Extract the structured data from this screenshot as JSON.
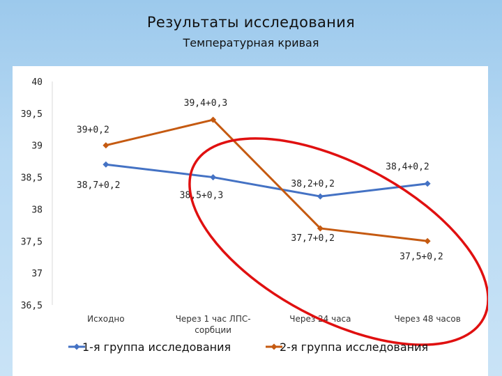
{
  "colors": {
    "series1": "#4472c4",
    "series2": "#c55a11",
    "highlight": "#e01010"
  },
  "chart_data": {
    "type": "line",
    "title": "Результаты исследования",
    "subtitle": "Температурная кривая",
    "xlabel": "",
    "ylabel": "",
    "ylim": [
      36.5,
      40
    ],
    "y_ticks": [
      "40",
      "39,5",
      "39",
      "38,5",
      "38",
      "37,5",
      "37",
      "36,5"
    ],
    "y_tick_values": [
      40,
      39.5,
      39,
      38.5,
      38,
      37.5,
      37,
      36.5
    ],
    "grid": false,
    "legend": "bottom",
    "categories": [
      "Исходно",
      "Через 1 час ЛПС-сорбции",
      "Через 24 часа",
      "Через 48 часов"
    ],
    "category_lines": [
      [
        "Исходно"
      ],
      [
        "Через 1 час ЛПС-",
        "сорбции"
      ],
      [
        "Через 24 часа"
      ],
      [
        "Через 48 часов"
      ]
    ],
    "series": [
      {
        "name": "1-я группа исследования",
        "values": [
          38.7,
          38.5,
          38.2,
          38.4
        ],
        "labels": [
          "38,7+0,2",
          "38,5+0,3",
          "38,2+0,2",
          "38,4+0,2"
        ]
      },
      {
        "name": "2-я группа исследования",
        "values": [
          39.0,
          39.4,
          37.7,
          37.5
        ],
        "labels": [
          "39+0,2",
          "39,4+0,3",
          "37,7+0,2",
          "37,5+0,2"
        ]
      }
    ]
  }
}
